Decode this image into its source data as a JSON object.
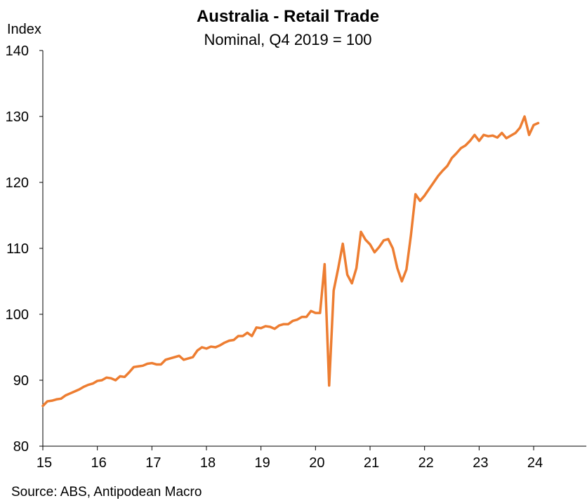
{
  "chart_data": {
    "type": "line",
    "title": "Australia - Retail Trade",
    "subtitle": "Nominal, Q4 2019 = 100",
    "y_label": "Index",
    "source": "Source: ABS, Antipodean Macro",
    "x": [
      15,
      15.083,
      15.167,
      15.25,
      15.333,
      15.417,
      15.5,
      15.583,
      15.667,
      15.75,
      15.833,
      15.917,
      16,
      16.083,
      16.167,
      16.25,
      16.333,
      16.417,
      16.5,
      16.583,
      16.667,
      16.75,
      16.833,
      16.917,
      17,
      17.083,
      17.167,
      17.25,
      17.333,
      17.417,
      17.5,
      17.583,
      17.667,
      17.75,
      17.833,
      17.917,
      18,
      18.083,
      18.167,
      18.25,
      18.333,
      18.417,
      18.5,
      18.583,
      18.667,
      18.75,
      18.833,
      18.917,
      19,
      19.083,
      19.167,
      19.25,
      19.333,
      19.417,
      19.5,
      19.583,
      19.667,
      19.75,
      19.833,
      19.917,
      20,
      20.083,
      20.167,
      20.25,
      20.333,
      20.417,
      20.5,
      20.583,
      20.667,
      20.75,
      20.833,
      20.917,
      21,
      21.083,
      21.167,
      21.25,
      21.333,
      21.417,
      21.5,
      21.583,
      21.667,
      21.75,
      21.833,
      21.917,
      22,
      22.083,
      22.167,
      22.25,
      22.333,
      22.417,
      22.5,
      22.583,
      22.667,
      22.75,
      22.833,
      22.917,
      23,
      23.083,
      23.167,
      23.25,
      23.333,
      23.417,
      23.5,
      23.583,
      23.667,
      23.75,
      23.833,
      23.917,
      24,
      24.083
    ],
    "series": [
      {
        "name": "Retail Trade",
        "color": "#ed7d31",
        "values": [
          86.1,
          86.8,
          86.9,
          87.1,
          87.2,
          87.7,
          88.0,
          88.3,
          88.6,
          89.0,
          89.3,
          89.5,
          89.9,
          90.0,
          90.4,
          90.3,
          90.0,
          90.6,
          90.5,
          91.2,
          92.0,
          92.1,
          92.2,
          92.5,
          92.6,
          92.4,
          92.4,
          93.1,
          93.3,
          93.5,
          93.7,
          93.1,
          93.3,
          93.5,
          94.5,
          95.0,
          94.8,
          95.1,
          95.0,
          95.3,
          95.7,
          96.0,
          96.1,
          96.7,
          96.7,
          97.2,
          96.7,
          98.0,
          97.9,
          98.2,
          98.1,
          97.8,
          98.3,
          98.5,
          98.5,
          99.0,
          99.2,
          99.6,
          99.6,
          100.5,
          100.2,
          100.2,
          107.6,
          89.2,
          103.6,
          107.0,
          110.7,
          106.0,
          104.7,
          107.0,
          112.5,
          111.3,
          110.6,
          109.4,
          110.2,
          111.2,
          111.4,
          110.0,
          107.0,
          105.0,
          106.8,
          112.0,
          118.2,
          117.2,
          118.0,
          119.0,
          120.0,
          121.0,
          121.8,
          122.5,
          123.7,
          124.4,
          125.2,
          125.6,
          126.3,
          127.2,
          126.3,
          127.2,
          127.0,
          127.1,
          126.8,
          127.5,
          126.7,
          127.1,
          127.5,
          128.3,
          130.0,
          127.2,
          128.7,
          129.0
        ]
      }
    ],
    "xlim": [
      15,
      25
    ],
    "xticks": [
      15,
      16,
      17,
      18,
      19,
      20,
      21,
      22,
      23,
      24
    ],
    "ylim": [
      80,
      140
    ],
    "yticks": [
      80,
      90,
      100,
      110,
      120,
      130,
      140
    ],
    "grid": false
  }
}
